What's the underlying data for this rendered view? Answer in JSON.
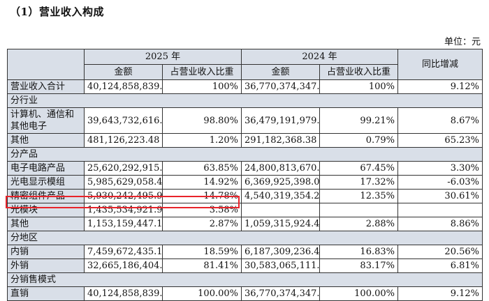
{
  "title": "（1）营业收入构成",
  "unit": "单位：元",
  "header": {
    "year_2025": "2025 年",
    "year_2024": "2024 年",
    "yoy": "同比增减",
    "amount": "金额",
    "ratio": "占营业收入比重"
  },
  "total": {
    "label": "营业收入合计",
    "amount_2025": "40,124,858,839.52",
    "ratio_2025": "100%",
    "amount_2024": "36,770,374,347.58",
    "ratio_2024": "100%",
    "yoy": "9.12%"
  },
  "sections": [
    {
      "title": "分行业",
      "rows": [
        {
          "label": "计算机、通信和其他电子",
          "amount_2025": "39,643,732,616.04",
          "ratio_2025": "98.80%",
          "amount_2024": "36,479,191,979.20",
          "ratio_2024": "99.21%",
          "yoy": "8.67%"
        },
        {
          "label": "其他",
          "amount_2025": "481,126,223.48",
          "ratio_2025": "1.20%",
          "amount_2024": "291,182,368.38",
          "ratio_2024": "0.79%",
          "yoy": "65.23%"
        }
      ]
    },
    {
      "title": "分产品",
      "rows": [
        {
          "label": "电子电路产品",
          "amount_2025": "25,620,292,915.99",
          "ratio_2025": "63.85%",
          "amount_2024": "24,800,813,670.87",
          "ratio_2024": "67.45%",
          "yoy": "3.30%"
        },
        {
          "label": "光电显示模组",
          "amount_2025": "5,985,629,058.48",
          "ratio_2025": "14.92%",
          "amount_2024": "6,369,925,398.02",
          "ratio_2024": "17.32%",
          "yoy": "-6.03%"
        },
        {
          "label": "精密组件产品",
          "amount_2025": "5,930,242,495.99",
          "ratio_2025": "14.78%",
          "amount_2024": "4,540,319,354.27",
          "ratio_2024": "12.35%",
          "yoy": "30.61%"
        },
        {
          "label": "光模块",
          "amount_2025": "1,435,534,921.96",
          "ratio_2025": "3.58%",
          "amount_2024": "",
          "ratio_2024": "",
          "yoy": ""
        },
        {
          "label": "其他",
          "amount_2025": "1,153,159,447.10",
          "ratio_2025": "2.87%",
          "amount_2024": "1,059,315,924.42",
          "ratio_2024": "2.88%",
          "yoy": "8.86%"
        }
      ]
    },
    {
      "title": "分地区",
      "rows": [
        {
          "label": "内销",
          "amount_2025": "7,459,672,435.12",
          "ratio_2025": "18.59%",
          "amount_2024": "6,187,309,236.49",
          "ratio_2024": "16.83%",
          "yoy": "20.56%"
        },
        {
          "label": "外销",
          "amount_2025": "32,665,186,404.40",
          "ratio_2025": "81.41%",
          "amount_2024": "30,583,065,111.09",
          "ratio_2024": "83.17%",
          "yoy": "6.81%"
        }
      ]
    },
    {
      "title": "分销售模式",
      "rows": [
        {
          "label": "直销",
          "amount_2025": "40,124,858,839.52",
          "ratio_2025": "100.00%",
          "amount_2024": "36,770,374,347.58",
          "ratio_2024": "100.00%",
          "yoy": "9.12%"
        }
      ]
    }
  ],
  "highlight_color": "#e8232a",
  "header_bg": "#d9dfe8"
}
